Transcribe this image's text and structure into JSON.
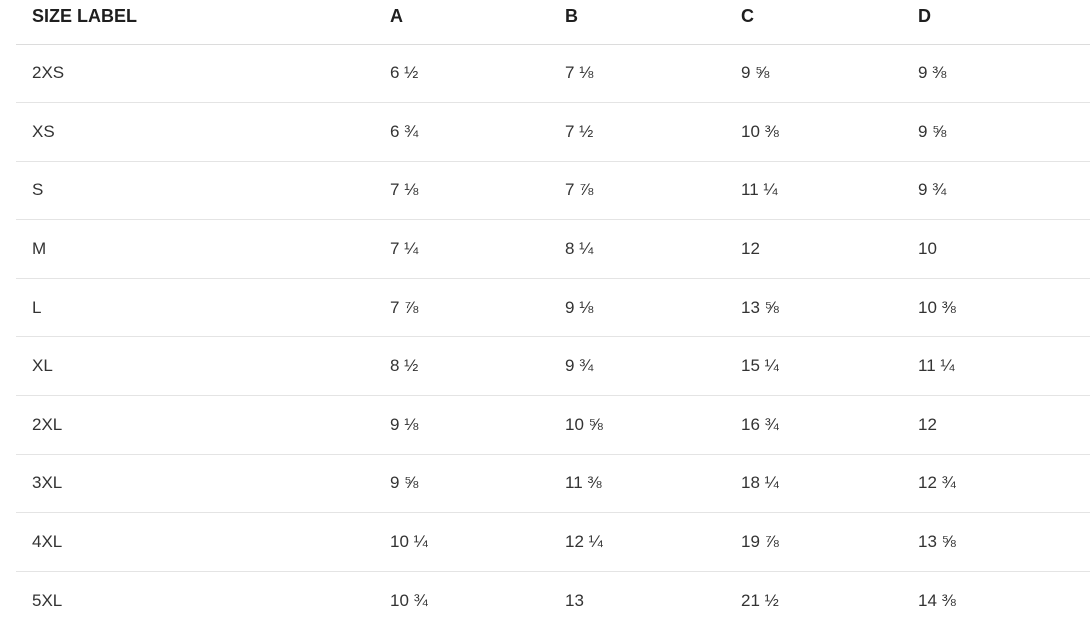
{
  "table": {
    "headers": [
      "SIZE LABEL",
      "A",
      "B",
      "C",
      "D"
    ],
    "rows": [
      [
        "2XS",
        "6 ½",
        "7 ⅛",
        "9 ⅝",
        "9 ⅜"
      ],
      [
        "XS",
        "6 ¾",
        "7 ½",
        "10 ⅜",
        "9 ⅝"
      ],
      [
        "S",
        "7 ⅛",
        "7 ⅞",
        "11 ¼",
        "9 ¾"
      ],
      [
        "M",
        "7 ¼",
        "8 ¼",
        "12",
        "10"
      ],
      [
        "L",
        "7 ⅞",
        "9 ⅛",
        "13 ⅝",
        "10 ⅜"
      ],
      [
        "XL",
        "8 ½",
        "9 ¾",
        "15 ¼",
        "11 ¼"
      ],
      [
        "2XL",
        "9 ⅛",
        "10 ⅝",
        "16 ¾",
        "12"
      ],
      [
        "3XL",
        "9 ⅝",
        "11 ⅜",
        "18 ¼",
        "12 ¾"
      ],
      [
        "4XL",
        "10 ¼",
        "12 ¼",
        "19 ⅞",
        "13 ⅝"
      ],
      [
        "5XL",
        "10 ¾",
        "13",
        "21 ½",
        "14 ⅜"
      ]
    ]
  }
}
